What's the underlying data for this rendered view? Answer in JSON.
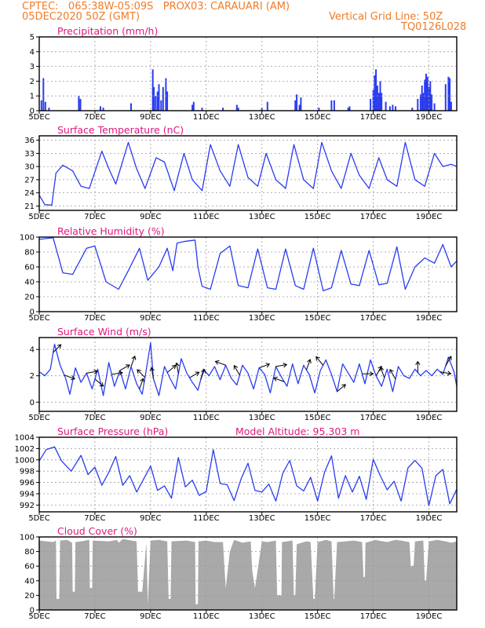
{
  "header": {
    "line1": "CPTEC:   065:38W-05:09S   PROX03: CARAUARI (AM)",
    "line2_left": "05DEC2020 50Z (GMT)",
    "line2_right": "Vertical Grid Line: 50Z",
    "line3_right": "TQ0126L028"
  },
  "colors": {
    "header": "#f07c28",
    "title": "#e0187c",
    "series": "#2a3cf0",
    "cloud": "#a9a9a9",
    "grid": "#9a9a9a"
  },
  "x_ticks": [
    "5DEC",
    "7DEC",
    "9DEC",
    "11DEC",
    "13DEC",
    "15DEC",
    "17DEC",
    "19DEC"
  ],
  "x_tick_days": [
    5,
    7,
    9,
    11,
    13,
    15,
    17,
    19
  ],
  "x_range": [
    5,
    20
  ],
  "chart_data": [
    {
      "id": "precip",
      "type": "bar",
      "title": "Precipitation (mm/h)",
      "ylim": [
        0,
        5
      ],
      "yticks": [
        "0",
        "1",
        "2",
        "3",
        "4",
        "5"
      ],
      "ytick_values": [
        0,
        1,
        2,
        3,
        4,
        5
      ],
      "x": [
        5.08,
        5.15,
        5.22,
        5.35,
        6.42,
        6.48,
        7.2,
        7.3,
        8.3,
        9.08,
        9.12,
        9.18,
        9.25,
        9.3,
        9.38,
        9.45,
        9.55,
        9.6,
        10.5,
        10.55,
        10.85,
        11.6,
        12.1,
        12.15,
        13.0,
        13.2,
        14.2,
        14.25,
        14.35,
        14.4,
        15.05,
        15.5,
        15.6,
        16.1,
        16.15,
        16.9,
        17.0,
        17.05,
        17.1,
        17.15,
        17.2,
        17.25,
        17.3,
        17.45,
        17.6,
        17.7,
        17.8,
        18.4,
        18.6,
        18.7,
        18.75,
        18.8,
        18.85,
        18.9,
        18.95,
        19.0,
        19.05,
        19.1,
        19.2,
        19.6,
        19.7,
        19.75,
        19.8
      ],
      "values": [
        0.7,
        2.2,
        0.6,
        0.2,
        1.0,
        0.8,
        0.3,
        0.2,
        0.5,
        2.8,
        1.6,
        1.0,
        1.3,
        1.8,
        0.7,
        1.6,
        2.2,
        1.3,
        0.4,
        0.6,
        0.2,
        0.2,
        0.4,
        0.2,
        0.2,
        0.6,
        0.7,
        1.1,
        0.4,
        0.9,
        0.2,
        0.7,
        0.7,
        0.2,
        0.3,
        0.8,
        1.4,
        2.4,
        2.8,
        1.7,
        1.2,
        2.0,
        1.2,
        0.6,
        0.3,
        0.4,
        0.3,
        0.2,
        0.8,
        1.1,
        1.7,
        1.2,
        2.1,
        2.5,
        2.3,
        1.6,
        2.0,
        1.1,
        0.5,
        1.8,
        2.3,
        2.2,
        0.6
      ]
    },
    {
      "id": "temp",
      "type": "line",
      "title": "Surface Temperature (nC)",
      "ylim": [
        20,
        37
      ],
      "yticks": [
        "21",
        "24",
        "27",
        "30",
        "33",
        "36"
      ],
      "ytick_values": [
        21,
        24,
        27,
        30,
        33,
        36
      ],
      "x": [
        5.0,
        5.2,
        5.45,
        5.6,
        5.85,
        6.2,
        6.5,
        6.8,
        7.25,
        7.5,
        7.75,
        8.2,
        8.5,
        8.8,
        9.2,
        9.5,
        9.85,
        10.2,
        10.5,
        10.85,
        11.15,
        11.5,
        11.85,
        12.15,
        12.5,
        12.85,
        13.15,
        13.5,
        13.85,
        14.15,
        14.5,
        14.85,
        15.15,
        15.5,
        15.85,
        16.2,
        16.5,
        16.85,
        17.2,
        17.5,
        17.85,
        18.15,
        18.5,
        18.85,
        19.2,
        19.5,
        19.8,
        20.0
      ],
      "values": [
        23.5,
        21.3,
        21.2,
        28.5,
        30.3,
        29.0,
        25.5,
        25.0,
        33.5,
        29.5,
        26.0,
        35.5,
        29.5,
        25.0,
        32.0,
        31.0,
        24.5,
        33.0,
        27.0,
        24.5,
        35.0,
        29.0,
        25.5,
        35.0,
        27.5,
        25.5,
        33.0,
        27.0,
        25.0,
        35.0,
        27.0,
        25.0,
        35.5,
        29.0,
        25.0,
        33.0,
        28.0,
        25.0,
        32.0,
        27.0,
        25.5,
        35.5,
        27.0,
        25.5,
        33.0,
        30.0,
        30.5,
        30.0
      ]
    },
    {
      "id": "rh",
      "type": "line",
      "title": "Relative Humidity (%)",
      "ylim": [
        0,
        100
      ],
      "yticks": [
        "0",
        "20",
        "40",
        "60",
        "80",
        "100"
      ],
      "ytick_values": [
        0,
        20,
        40,
        60,
        80,
        100
      ],
      "x": [
        5.0,
        5.5,
        5.85,
        6.2,
        6.7,
        7.0,
        7.4,
        7.85,
        8.2,
        8.6,
        8.9,
        9.3,
        9.6,
        9.8,
        9.95,
        10.2,
        10.6,
        10.7,
        10.85,
        11.15,
        11.5,
        11.85,
        12.15,
        12.5,
        12.85,
        13.2,
        13.5,
        13.85,
        14.2,
        14.5,
        14.85,
        15.2,
        15.5,
        15.85,
        16.2,
        16.5,
        16.85,
        17.2,
        17.5,
        17.85,
        18.15,
        18.5,
        18.85,
        19.2,
        19.5,
        19.8,
        20.0
      ],
      "values": [
        97,
        99,
        52,
        50,
        85,
        88,
        40,
        30,
        55,
        85,
        42,
        60,
        85,
        55,
        92,
        94,
        96,
        60,
        34,
        30,
        78,
        88,
        35,
        32,
        84,
        32,
        30,
        84,
        35,
        30,
        85,
        28,
        32,
        82,
        37,
        35,
        82,
        36,
        38,
        87,
        30,
        60,
        72,
        65,
        90,
        60,
        68
      ]
    },
    {
      "id": "wind",
      "type": "line",
      "title": "Surface Wind (m/s)",
      "ylim": [
        -0.7,
        4.9
      ],
      "yticks": [
        "0",
        "2",
        "4"
      ],
      "ytick_values": [
        0,
        2,
        4
      ],
      "x": [
        5.0,
        5.2,
        5.4,
        5.55,
        5.75,
        5.95,
        6.1,
        6.3,
        6.5,
        6.7,
        6.9,
        7.1,
        7.3,
        7.5,
        7.7,
        7.9,
        8.1,
        8.3,
        8.5,
        8.7,
        8.85,
        9.0,
        9.1,
        9.3,
        9.5,
        9.7,
        9.9,
        10.1,
        10.3,
        10.5,
        10.7,
        10.9,
        11.1,
        11.3,
        11.5,
        11.7,
        11.9,
        12.1,
        12.3,
        12.5,
        12.7,
        12.9,
        13.1,
        13.3,
        13.5,
        13.7,
        13.9,
        14.1,
        14.3,
        14.5,
        14.7,
        14.9,
        15.1,
        15.3,
        15.5,
        15.7,
        15.9,
        16.1,
        16.3,
        16.5,
        16.7,
        16.9,
        17.1,
        17.3,
        17.5,
        17.7,
        17.9,
        18.1,
        18.3,
        18.5,
        18.7,
        18.9,
        19.1,
        19.3,
        19.5,
        19.7,
        19.9,
        20.0
      ],
      "values": [
        2.3,
        2.0,
        2.5,
        4.4,
        2.8,
        1.8,
        0.6,
        2.6,
        1.5,
        2.2,
        1.0,
        2.5,
        0.5,
        3.0,
        1.2,
        2.4,
        1.0,
        2.7,
        1.4,
        0.6,
        2.5,
        4.5,
        1.8,
        0.5,
        2.7,
        1.8,
        1.0,
        3.3,
        2.2,
        1.5,
        0.9,
        2.5,
        2.0,
        2.7,
        1.7,
        2.8,
        1.8,
        1.3,
        2.8,
        2.2,
        1.0,
        2.6,
        2.1,
        0.7,
        2.7,
        1.9,
        1.2,
        2.9,
        1.4,
        2.8,
        2.1,
        0.7,
        2.4,
        3.2,
        2.1,
        0.8,
        2.9,
        2.2,
        1.5,
        2.9,
        1.4,
        3.2,
        2.0,
        1.2,
        2.5,
        0.8,
        2.7,
        2.0,
        1.8,
        2.5,
        2.0,
        2.4,
        2.0,
        2.5,
        2.1,
        3.4,
        2.3,
        1.2
      ],
      "arrows": [
        [
          5.5,
          45
        ],
        [
          5.9,
          110
        ],
        [
          6.7,
          80
        ],
        [
          7.0,
          130
        ],
        [
          7.6,
          80
        ],
        [
          7.9,
          60
        ],
        [
          8.3,
          20
        ],
        [
          8.6,
          20
        ],
        [
          8.8,
          315
        ],
        [
          9.1,
          350
        ],
        [
          9.6,
          50
        ],
        [
          10.0,
          350
        ],
        [
          10.4,
          60
        ],
        [
          10.8,
          20
        ],
        [
          11.7,
          290
        ],
        [
          12.2,
          330
        ],
        [
          12.9,
          70
        ],
        [
          13.5,
          80
        ],
        [
          13.8,
          290
        ],
        [
          14.6,
          20
        ],
        [
          15.2,
          320
        ],
        [
          15.7,
          50
        ],
        [
          16.6,
          90
        ],
        [
          17.1,
          30
        ],
        [
          17.4,
          340
        ],
        [
          17.8,
          330
        ],
        [
          18.6,
          0
        ],
        [
          19.4,
          100
        ],
        [
          19.6,
          30
        ]
      ]
    },
    {
      "id": "pres",
      "type": "line",
      "title": "Surface Pressure (hPa)",
      "annotation": "Model Altitude: 95.303 m",
      "ylim": [
        990.8,
        1004
      ],
      "yticks": [
        "992",
        "994",
        "996",
        "998",
        "1000",
        "1002",
        "1004"
      ],
      "ytick_values": [
        992,
        994,
        996,
        998,
        1000,
        1002,
        1004
      ],
      "x": [
        5.0,
        5.25,
        5.55,
        5.8,
        6.15,
        6.5,
        6.75,
        7.0,
        7.25,
        7.5,
        7.75,
        8.0,
        8.25,
        8.5,
        8.75,
        9.0,
        9.25,
        9.5,
        9.75,
        10.0,
        10.25,
        10.5,
        10.75,
        11.0,
        11.25,
        11.5,
        11.75,
        12.0,
        12.25,
        12.5,
        12.75,
        13.0,
        13.25,
        13.5,
        13.75,
        14.0,
        14.25,
        14.5,
        14.75,
        15.0,
        15.25,
        15.5,
        15.75,
        16.0,
        16.25,
        16.5,
        16.75,
        17.0,
        17.25,
        17.5,
        17.75,
        18.0,
        18.25,
        18.5,
        18.75,
        19.0,
        19.25,
        19.5,
        19.75,
        20.0
      ],
      "values": [
        999.8,
        1001.8,
        1002.3,
        999.8,
        998.0,
        1000.8,
        997.4,
        998.7,
        995.5,
        997.8,
        1000.6,
        995.5,
        997.2,
        994.3,
        996.6,
        998.9,
        994.6,
        995.4,
        993.2,
        1000.4,
        995.2,
        996.4,
        993.7,
        994.4,
        1001.8,
        995.8,
        995.6,
        992.8,
        996.6,
        999.4,
        994.6,
        994.3,
        995.7,
        992.7,
        997.6,
        999.9,
        995.4,
        994.5,
        996.9,
        992.7,
        997.8,
        1000.7,
        993.2,
        997.2,
        994.3,
        997.1,
        993.0,
        1000.1,
        997.2,
        994.7,
        996.2,
        992.7,
        998.6,
        999.9,
        998.5,
        991.9,
        997.2,
        998.3,
        992.2,
        994.8
      ]
    },
    {
      "id": "cloud",
      "type": "area",
      "title": "Cloud Cover (%)",
      "ylim": [
        0,
        100
      ],
      "yticks": [
        "0",
        "20",
        "40",
        "60",
        "80",
        "100"
      ],
      "ytick_values": [
        0,
        20,
        40,
        60,
        80,
        100
      ],
      "x": [
        5.0,
        5.5,
        5.6,
        5.62,
        5.72,
        5.75,
        6.0,
        6.18,
        6.2,
        6.28,
        6.3,
        6.5,
        6.8,
        6.82,
        6.9,
        6.92,
        7.5,
        7.8,
        7.85,
        8.0,
        8.5,
        8.55,
        8.7,
        8.85,
        8.9,
        9.0,
        9.3,
        9.6,
        9.65,
        9.72,
        9.75,
        10.3,
        10.6,
        10.62,
        10.7,
        10.72,
        11.0,
        11.3,
        11.6,
        11.7,
        11.85,
        12.0,
        12.3,
        12.6,
        12.65,
        12.75,
        13.0,
        13.2,
        13.5,
        13.55,
        13.7,
        13.72,
        14.1,
        14.15,
        14.2,
        14.25,
        14.6,
        14.75,
        14.85,
        14.9,
        15.0,
        15.3,
        15.5,
        15.58,
        15.6,
        15.7,
        16.0,
        16.3,
        16.6,
        16.65,
        16.7,
        16.72,
        17.0,
        17.05,
        17.5,
        17.8,
        18.0,
        18.3,
        18.35,
        18.45,
        18.5,
        18.8,
        18.85,
        18.9,
        19.0,
        19.3,
        19.6,
        19.8,
        20.0
      ],
      "values": [
        95,
        93,
        95,
        15,
        15,
        95,
        96,
        92,
        25,
        25,
        93,
        94,
        96,
        30,
        30,
        95,
        94,
        96,
        92,
        97,
        94,
        25,
        25,
        92,
        8,
        95,
        96,
        94,
        15,
        15,
        94,
        95,
        93,
        8,
        8,
        94,
        95,
        93,
        93,
        30,
        80,
        96,
        92,
        94,
        55,
        30,
        94,
        93,
        95,
        20,
        20,
        93,
        95,
        20,
        20,
        90,
        94,
        93,
        15,
        15,
        93,
        96,
        94,
        15,
        15,
        93,
        94,
        95,
        93,
        45,
        45,
        92,
        95,
        96,
        93,
        96,
        95,
        93,
        60,
        60,
        94,
        95,
        40,
        40,
        94,
        96,
        94,
        92,
        94
      ]
    }
  ]
}
